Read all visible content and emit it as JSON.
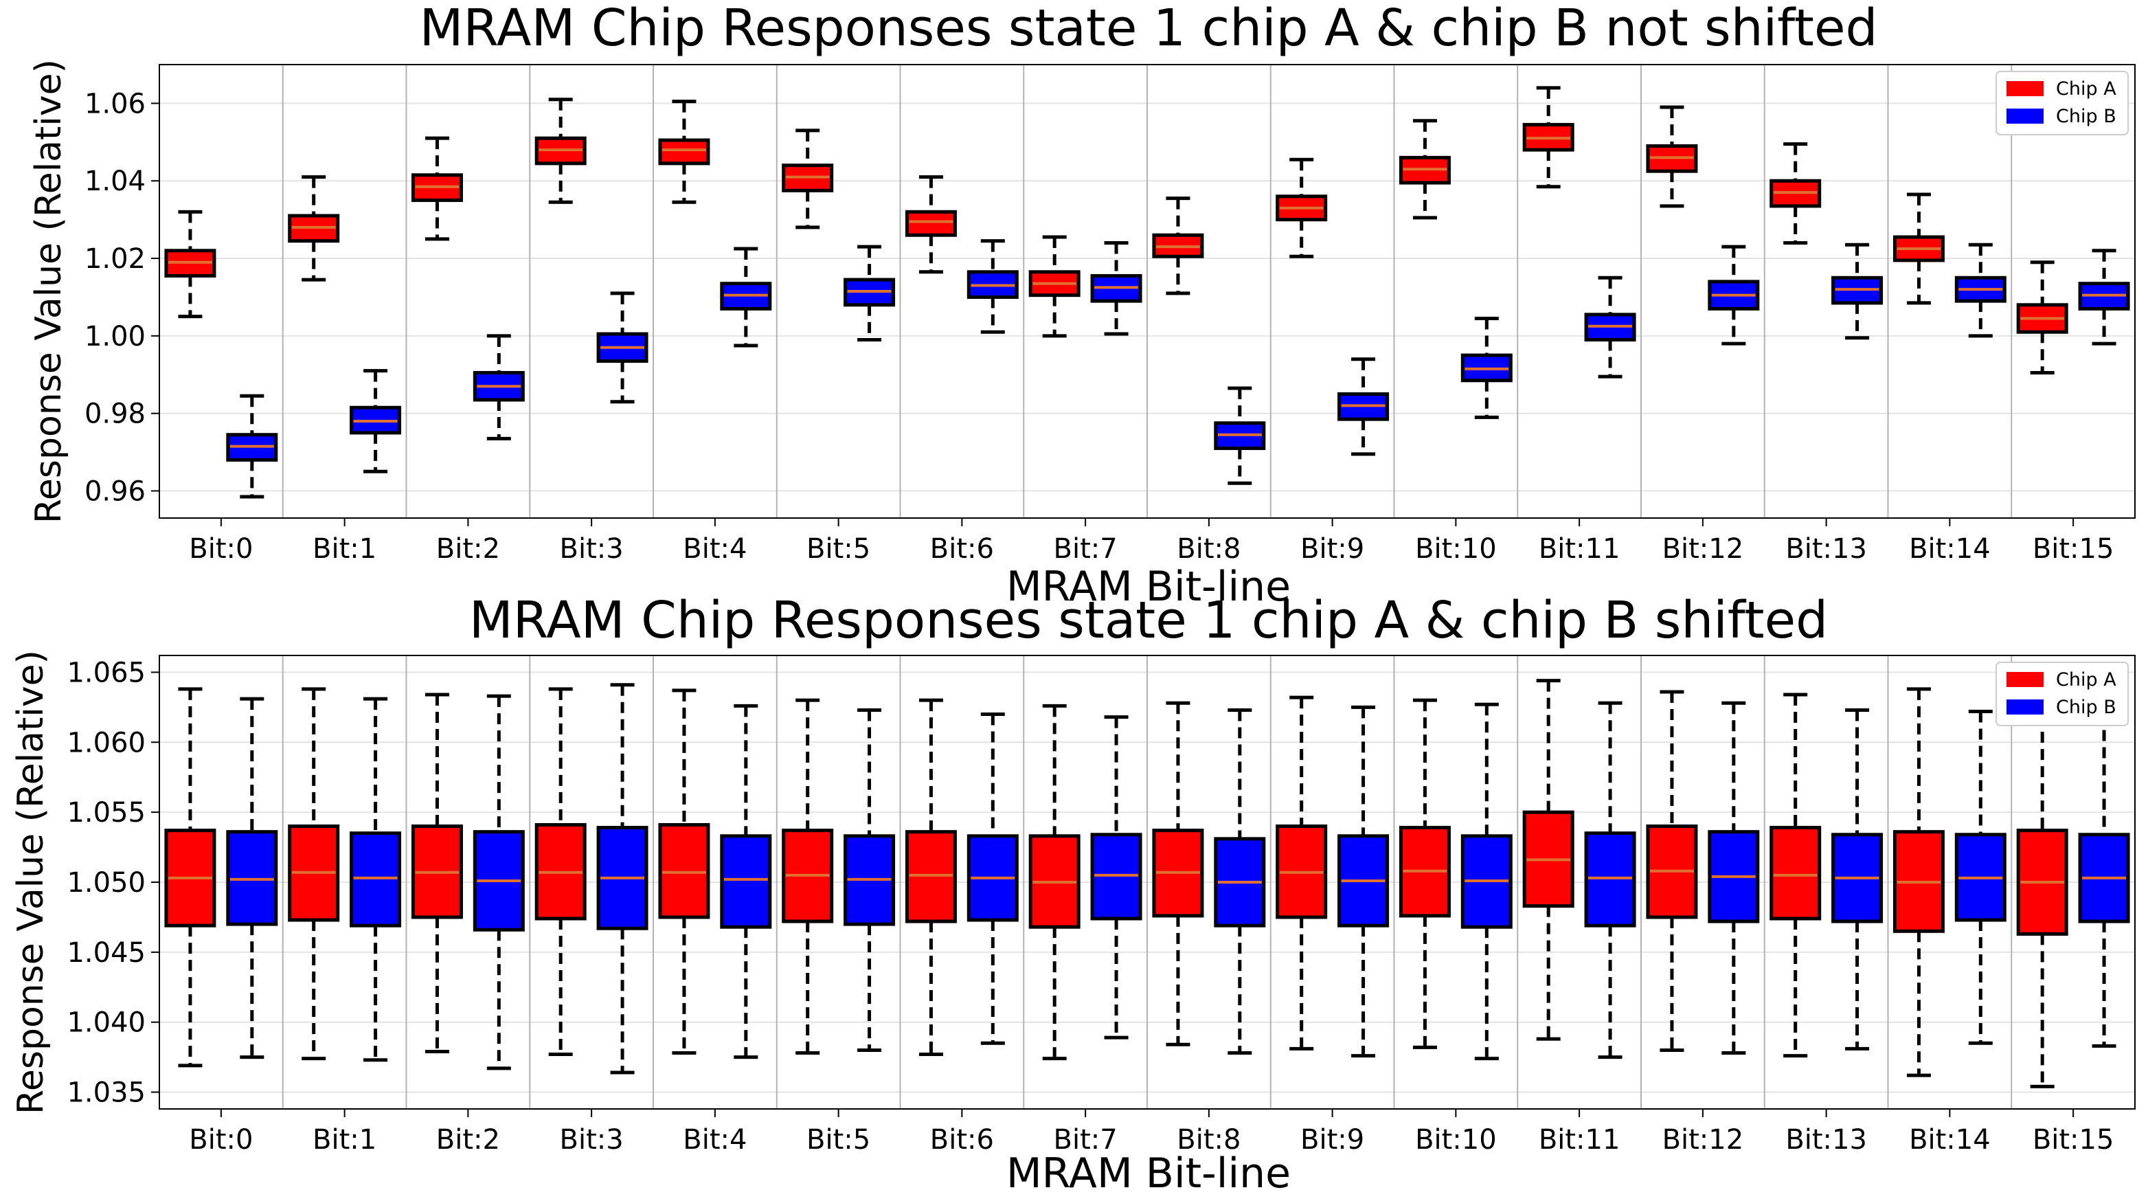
{
  "chart_data": [
    {
      "type": "boxplot",
      "title": "MRAM Chip Responses state 1 chip A & chip B not shifted",
      "xlabel": "MRAM Bit-line",
      "ylabel": "Response Value (Relative)",
      "categories": [
        "Bit:0",
        "Bit:1",
        "Bit:2",
        "Bit:3",
        "Bit:4",
        "Bit:5",
        "Bit:6",
        "Bit:7",
        "Bit:8",
        "Bit:9",
        "Bit:10",
        "Bit:11",
        "Bit:12",
        "Bit:13",
        "Bit:14",
        "Bit:15"
      ],
      "ylim": [
        0.953,
        1.07
      ],
      "yticks": [
        0.96,
        0.98,
        1.0,
        1.02,
        1.04,
        1.06
      ],
      "ytick_labels": [
        "0.96",
        "0.98",
        "1.00",
        "1.02",
        "1.04",
        "1.06"
      ],
      "legend": {
        "position": "top-right",
        "entries": [
          "Chip A",
          "Chip B"
        ]
      },
      "series": [
        {
          "name": "Chip A",
          "color": "#ff0000",
          "boxes": [
            {
              "min": 1.005,
              "q1": 1.0155,
              "median": 1.019,
              "q3": 1.022,
              "max": 1.032
            },
            {
              "min": 1.0145,
              "q1": 1.0245,
              "median": 1.028,
              "q3": 1.031,
              "max": 1.041
            },
            {
              "min": 1.025,
              "q1": 1.035,
              "median": 1.0385,
              "q3": 1.0415,
              "max": 1.051
            },
            {
              "min": 1.0345,
              "q1": 1.0445,
              "median": 1.048,
              "q3": 1.051,
              "max": 1.061
            },
            {
              "min": 1.0345,
              "q1": 1.0445,
              "median": 1.048,
              "q3": 1.0505,
              "max": 1.0605
            },
            {
              "min": 1.028,
              "q1": 1.0375,
              "median": 1.041,
              "q3": 1.044,
              "max": 1.053
            },
            {
              "min": 1.0165,
              "q1": 1.026,
              "median": 1.0295,
              "q3": 1.032,
              "max": 1.041
            },
            {
              "min": 1.0,
              "q1": 1.0105,
              "median": 1.0135,
              "q3": 1.0165,
              "max": 1.0255
            },
            {
              "min": 1.011,
              "q1": 1.0205,
              "median": 1.023,
              "q3": 1.026,
              "max": 1.0355
            },
            {
              "min": 1.0205,
              "q1": 1.03,
              "median": 1.033,
              "q3": 1.036,
              "max": 1.0455
            },
            {
              "min": 1.0305,
              "q1": 1.0395,
              "median": 1.043,
              "q3": 1.046,
              "max": 1.0555
            },
            {
              "min": 1.0385,
              "q1": 1.048,
              "median": 1.051,
              "q3": 1.0545,
              "max": 1.064
            },
            {
              "min": 1.0335,
              "q1": 1.0425,
              "median": 1.046,
              "q3": 1.049,
              "max": 1.059
            },
            {
              "min": 1.024,
              "q1": 1.0335,
              "median": 1.037,
              "q3": 1.04,
              "max": 1.0495
            },
            {
              "min": 1.0085,
              "q1": 1.0195,
              "median": 1.0225,
              "q3": 1.0255,
              "max": 1.0365
            },
            {
              "min": 0.9905,
              "q1": 1.001,
              "median": 1.0045,
              "q3": 1.008,
              "max": 1.019
            }
          ]
        },
        {
          "name": "Chip B",
          "color": "#0000ff",
          "boxes": [
            {
              "min": 0.9585,
              "q1": 0.968,
              "median": 0.9715,
              "q3": 0.9745,
              "max": 0.9845
            },
            {
              "min": 0.965,
              "q1": 0.975,
              "median": 0.978,
              "q3": 0.9815,
              "max": 0.991
            },
            {
              "min": 0.9735,
              "q1": 0.9835,
              "median": 0.987,
              "q3": 0.9905,
              "max": 1.0
            },
            {
              "min": 0.983,
              "q1": 0.9935,
              "median": 0.997,
              "q3": 1.0005,
              "max": 1.011
            },
            {
              "min": 0.9975,
              "q1": 1.007,
              "median": 1.0105,
              "q3": 1.0135,
              "max": 1.0225
            },
            {
              "min": 0.999,
              "q1": 1.008,
              "median": 1.0115,
              "q3": 1.0145,
              "max": 1.023
            },
            {
              "min": 1.001,
              "q1": 1.01,
              "median": 1.013,
              "q3": 1.0165,
              "max": 1.0245
            },
            {
              "min": 1.0005,
              "q1": 1.009,
              "median": 1.0125,
              "q3": 1.0155,
              "max": 1.024
            },
            {
              "min": 0.962,
              "q1": 0.971,
              "median": 0.9745,
              "q3": 0.9775,
              "max": 0.9865
            },
            {
              "min": 0.9695,
              "q1": 0.9785,
              "median": 0.982,
              "q3": 0.985,
              "max": 0.994
            },
            {
              "min": 0.979,
              "q1": 0.9885,
              "median": 0.9915,
              "q3": 0.995,
              "max": 1.0045
            },
            {
              "min": 0.9895,
              "q1": 0.999,
              "median": 1.0025,
              "q3": 1.0055,
              "max": 1.015
            },
            {
              "min": 0.998,
              "q1": 1.007,
              "median": 1.0105,
              "q3": 1.014,
              "max": 1.023
            },
            {
              "min": 0.9995,
              "q1": 1.0085,
              "median": 1.012,
              "q3": 1.015,
              "max": 1.0235
            },
            {
              "min": 1.0,
              "q1": 1.009,
              "median": 1.012,
              "q3": 1.015,
              "max": 1.0235
            },
            {
              "min": 0.998,
              "q1": 1.007,
              "median": 1.0105,
              "q3": 1.0135,
              "max": 1.022
            }
          ]
        }
      ]
    },
    {
      "type": "boxplot",
      "title": "MRAM Chip Responses state 1 chip A & chip B shifted",
      "xlabel": "MRAM Bit-line",
      "ylabel": "Response Value (Relative)",
      "categories": [
        "Bit:0",
        "Bit:1",
        "Bit:2",
        "Bit:3",
        "Bit:4",
        "Bit:5",
        "Bit:6",
        "Bit:7",
        "Bit:8",
        "Bit:9",
        "Bit:10",
        "Bit:11",
        "Bit:12",
        "Bit:13",
        "Bit:14",
        "Bit:15"
      ],
      "ylim": [
        1.0338,
        1.0662
      ],
      "yticks": [
        1.035,
        1.04,
        1.045,
        1.05,
        1.055,
        1.06,
        1.065
      ],
      "ytick_labels": [
        "1.035",
        "1.040",
        "1.045",
        "1.050",
        "1.055",
        "1.060",
        "1.065"
      ],
      "legend": {
        "position": "top-right",
        "entries": [
          "Chip A",
          "Chip B"
        ]
      },
      "series": [
        {
          "name": "Chip A",
          "color": "#ff0000",
          "boxes": [
            {
              "min": 1.0369,
              "q1": 1.0469,
              "median": 1.0503,
              "q3": 1.0537,
              "max": 1.0638
            },
            {
              "min": 1.0374,
              "q1": 1.0473,
              "median": 1.0507,
              "q3": 1.054,
              "max": 1.0638
            },
            {
              "min": 1.0379,
              "q1": 1.0475,
              "median": 1.0507,
              "q3": 1.054,
              "max": 1.0634
            },
            {
              "min": 1.0377,
              "q1": 1.0474,
              "median": 1.0507,
              "q3": 1.0541,
              "max": 1.0638
            },
            {
              "min": 1.0378,
              "q1": 1.0475,
              "median": 1.0507,
              "q3": 1.0541,
              "max": 1.0637
            },
            {
              "min": 1.0378,
              "q1": 1.0472,
              "median": 1.0505,
              "q3": 1.0537,
              "max": 1.063
            },
            {
              "min": 1.0377,
              "q1": 1.0472,
              "median": 1.0505,
              "q3": 1.0536,
              "max": 1.063
            },
            {
              "min": 1.0374,
              "q1": 1.0468,
              "median": 1.05,
              "q3": 1.0533,
              "max": 1.0626
            },
            {
              "min": 1.0384,
              "q1": 1.0476,
              "median": 1.0507,
              "q3": 1.0537,
              "max": 1.0628
            },
            {
              "min": 1.0381,
              "q1": 1.0475,
              "median": 1.0507,
              "q3": 1.054,
              "max": 1.0632
            },
            {
              "min": 1.0382,
              "q1": 1.0476,
              "median": 1.0508,
              "q3": 1.0539,
              "max": 1.063
            },
            {
              "min": 1.0388,
              "q1": 1.0483,
              "median": 1.0516,
              "q3": 1.055,
              "max": 1.0644
            },
            {
              "min": 1.038,
              "q1": 1.0475,
              "median": 1.0508,
              "q3": 1.054,
              "max": 1.0636
            },
            {
              "min": 1.0376,
              "q1": 1.0474,
              "median": 1.0505,
              "q3": 1.0539,
              "max": 1.0634
            },
            {
              "min": 1.0362,
              "q1": 1.0465,
              "median": 1.05,
              "q3": 1.0536,
              "max": 1.0638
            },
            {
              "min": 1.0354,
              "q1": 1.0463,
              "median": 1.05,
              "q3": 1.0537,
              "max": 1.0632
            }
          ]
        },
        {
          "name": "Chip B",
          "color": "#0000ff",
          "boxes": [
            {
              "min": 1.0375,
              "q1": 1.047,
              "median": 1.0502,
              "q3": 1.0536,
              "max": 1.0631
            },
            {
              "min": 1.0373,
              "q1": 1.0469,
              "median": 1.0503,
              "q3": 1.0535,
              "max": 1.0631
            },
            {
              "min": 1.0367,
              "q1": 1.0466,
              "median": 1.0501,
              "q3": 1.0536,
              "max": 1.0633
            },
            {
              "min": 1.0364,
              "q1": 1.0467,
              "median": 1.0503,
              "q3": 1.0539,
              "max": 1.0641
            },
            {
              "min": 1.0375,
              "q1": 1.0468,
              "median": 1.0502,
              "q3": 1.0533,
              "max": 1.0626
            },
            {
              "min": 1.038,
              "q1": 1.047,
              "median": 1.0502,
              "q3": 1.0533,
              "max": 1.0623
            },
            {
              "min": 1.0385,
              "q1": 1.0473,
              "median": 1.0503,
              "q3": 1.0533,
              "max": 1.062
            },
            {
              "min": 1.0389,
              "q1": 1.0474,
              "median": 1.0505,
              "q3": 1.0534,
              "max": 1.0618
            },
            {
              "min": 1.0378,
              "q1": 1.0469,
              "median": 1.05,
              "q3": 1.0531,
              "max": 1.0623
            },
            {
              "min": 1.0376,
              "q1": 1.0469,
              "median": 1.0501,
              "q3": 1.0533,
              "max": 1.0625
            },
            {
              "min": 1.0374,
              "q1": 1.0468,
              "median": 1.0501,
              "q3": 1.0533,
              "max": 1.0627
            },
            {
              "min": 1.0375,
              "q1": 1.0469,
              "median": 1.0503,
              "q3": 1.0535,
              "max": 1.0628
            },
            {
              "min": 1.0378,
              "q1": 1.0472,
              "median": 1.0504,
              "q3": 1.0536,
              "max": 1.0628
            },
            {
              "min": 1.0381,
              "q1": 1.0472,
              "median": 1.0503,
              "q3": 1.0534,
              "max": 1.0623
            },
            {
              "min": 1.0385,
              "q1": 1.0473,
              "median": 1.0503,
              "q3": 1.0534,
              "max": 1.0622
            },
            {
              "min": 1.0383,
              "q1": 1.0472,
              "median": 1.0503,
              "q3": 1.0534,
              "max": 1.0621
            }
          ]
        }
      ]
    }
  ]
}
